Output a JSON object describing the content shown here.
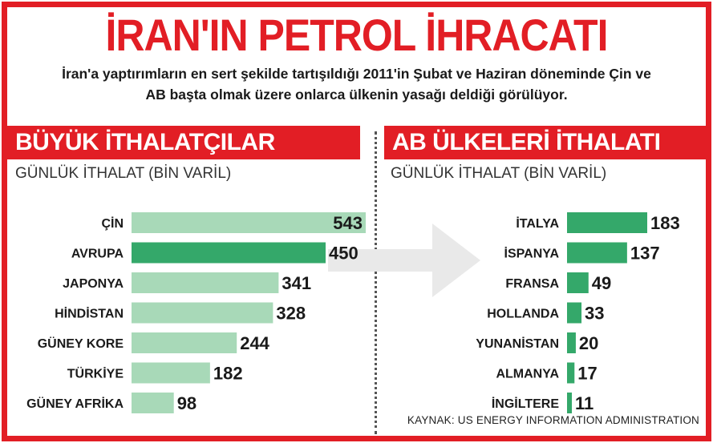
{
  "title": "İRAN'IN PETROL İHRACATI",
  "subtitle_line1": "İran'a yaptırımların en sert şekilde tartışıldığı 2011'in Şubat ve Haziran döneminde Çin ve",
  "subtitle_line2": "AB başta olmak üzere onlarca ülkenin yasağı deldiği görülüyor.",
  "source": "KAYNAK: US ENERGY INFORMATION ADMINISTRATION",
  "colors": {
    "accent": "#e21e25",
    "bar_light": "#a8d9b8",
    "bar_dark": "#34a86a",
    "arrow": "#e9e9e9"
  },
  "chart_data": [
    {
      "type": "bar",
      "orientation": "horizontal",
      "title": "BÜYÜK İTHALATÇILAR",
      "unit_label": "GÜNLÜK İTHALAT (BİN VARİL)",
      "categories": [
        "ÇİN",
        "AVRUPA",
        "JAPONYA",
        "HİNDİSTAN",
        "GÜNEY KORE",
        "TÜRKİYE",
        "GÜNEY AFRİKA"
      ],
      "values": [
        543,
        450,
        341,
        328,
        244,
        182,
        98
      ],
      "highlight_index": 1,
      "data_labels": true
    },
    {
      "type": "bar",
      "orientation": "horizontal",
      "title": "AB ÜLKELERİ İTHALATI",
      "unit_label": "GÜNLÜK İTHALAT (BİN VARİL)",
      "categories": [
        "İTALYA",
        "İSPANYA",
        "FRANSA",
        "HOLLANDA",
        "YUNANİSTAN",
        "ALMANYA",
        "İNGİLTERE"
      ],
      "values": [
        183,
        137,
        49,
        33,
        20,
        17,
        11
      ],
      "data_labels": true
    }
  ]
}
